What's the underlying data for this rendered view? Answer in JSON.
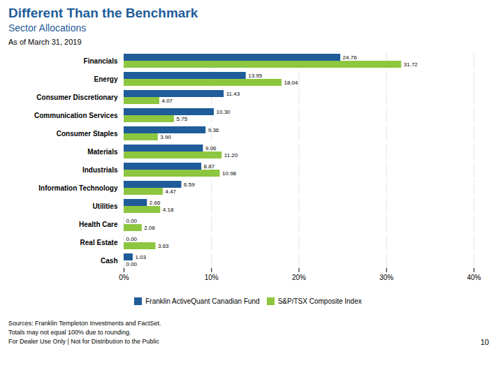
{
  "chart_data": {
    "type": "bar",
    "orientation": "horizontal",
    "title": "Different Than the Benchmark",
    "subtitle": "Sector Allocations",
    "annotations": [
      "As of March 31, 2019",
      "Sources: Franklin Templeton Investments and FactSet.\nTotals may not equal 100% due to rounding.\nFor Dealer Use Only | Not for Distribution to the Public",
      "10"
    ],
    "categories": [
      "Financials",
      "Energy",
      "Consumer Discretionary",
      "Communication Services",
      "Consumer Staples",
      "Materials",
      "Industrials",
      "Information Technology",
      "Utilities",
      "Health Care",
      "Real Estate",
      "Cash"
    ],
    "series": [
      {
        "name": "Franklin ActiveQuant Canadian Fund",
        "color": "#1f5c99",
        "values": [
          24.76,
          13.95,
          11.43,
          10.3,
          9.36,
          9.06,
          8.87,
          6.59,
          2.66,
          0.0,
          0.0,
          1.03
        ],
        "value_labels": [
          "24.76",
          "13.95",
          "11.43",
          "10.30",
          "9.36",
          "9.06",
          "8.87",
          "6.59",
          "2.66",
          "0.00",
          "0.00",
          "1.03"
        ]
      },
      {
        "name": "S&P/TSX Composite Index",
        "color": "#8dc63f",
        "values": [
          31.72,
          18.04,
          4.07,
          5.75,
          3.9,
          11.2,
          10.98,
          4.47,
          4.18,
          2.06,
          3.63,
          0.0
        ],
        "value_labels": [
          "31.72",
          "18.04",
          "4.07",
          "5.75",
          "3.90",
          "11.20",
          "10.98",
          "4.47",
          "4.18",
          "2.06",
          "3.63",
          "0.00"
        ]
      }
    ],
    "xlim": [
      0,
      40
    ],
    "xticks": [
      {
        "value": 0,
        "label": "0%"
      },
      {
        "value": 10,
        "label": "10%"
      },
      {
        "value": 20,
        "label": "20%"
      },
      {
        "value": 30,
        "label": "30%"
      },
      {
        "value": 40,
        "label": "40%"
      }
    ],
    "grid": true,
    "data_labels": true,
    "legend": "bottom"
  }
}
